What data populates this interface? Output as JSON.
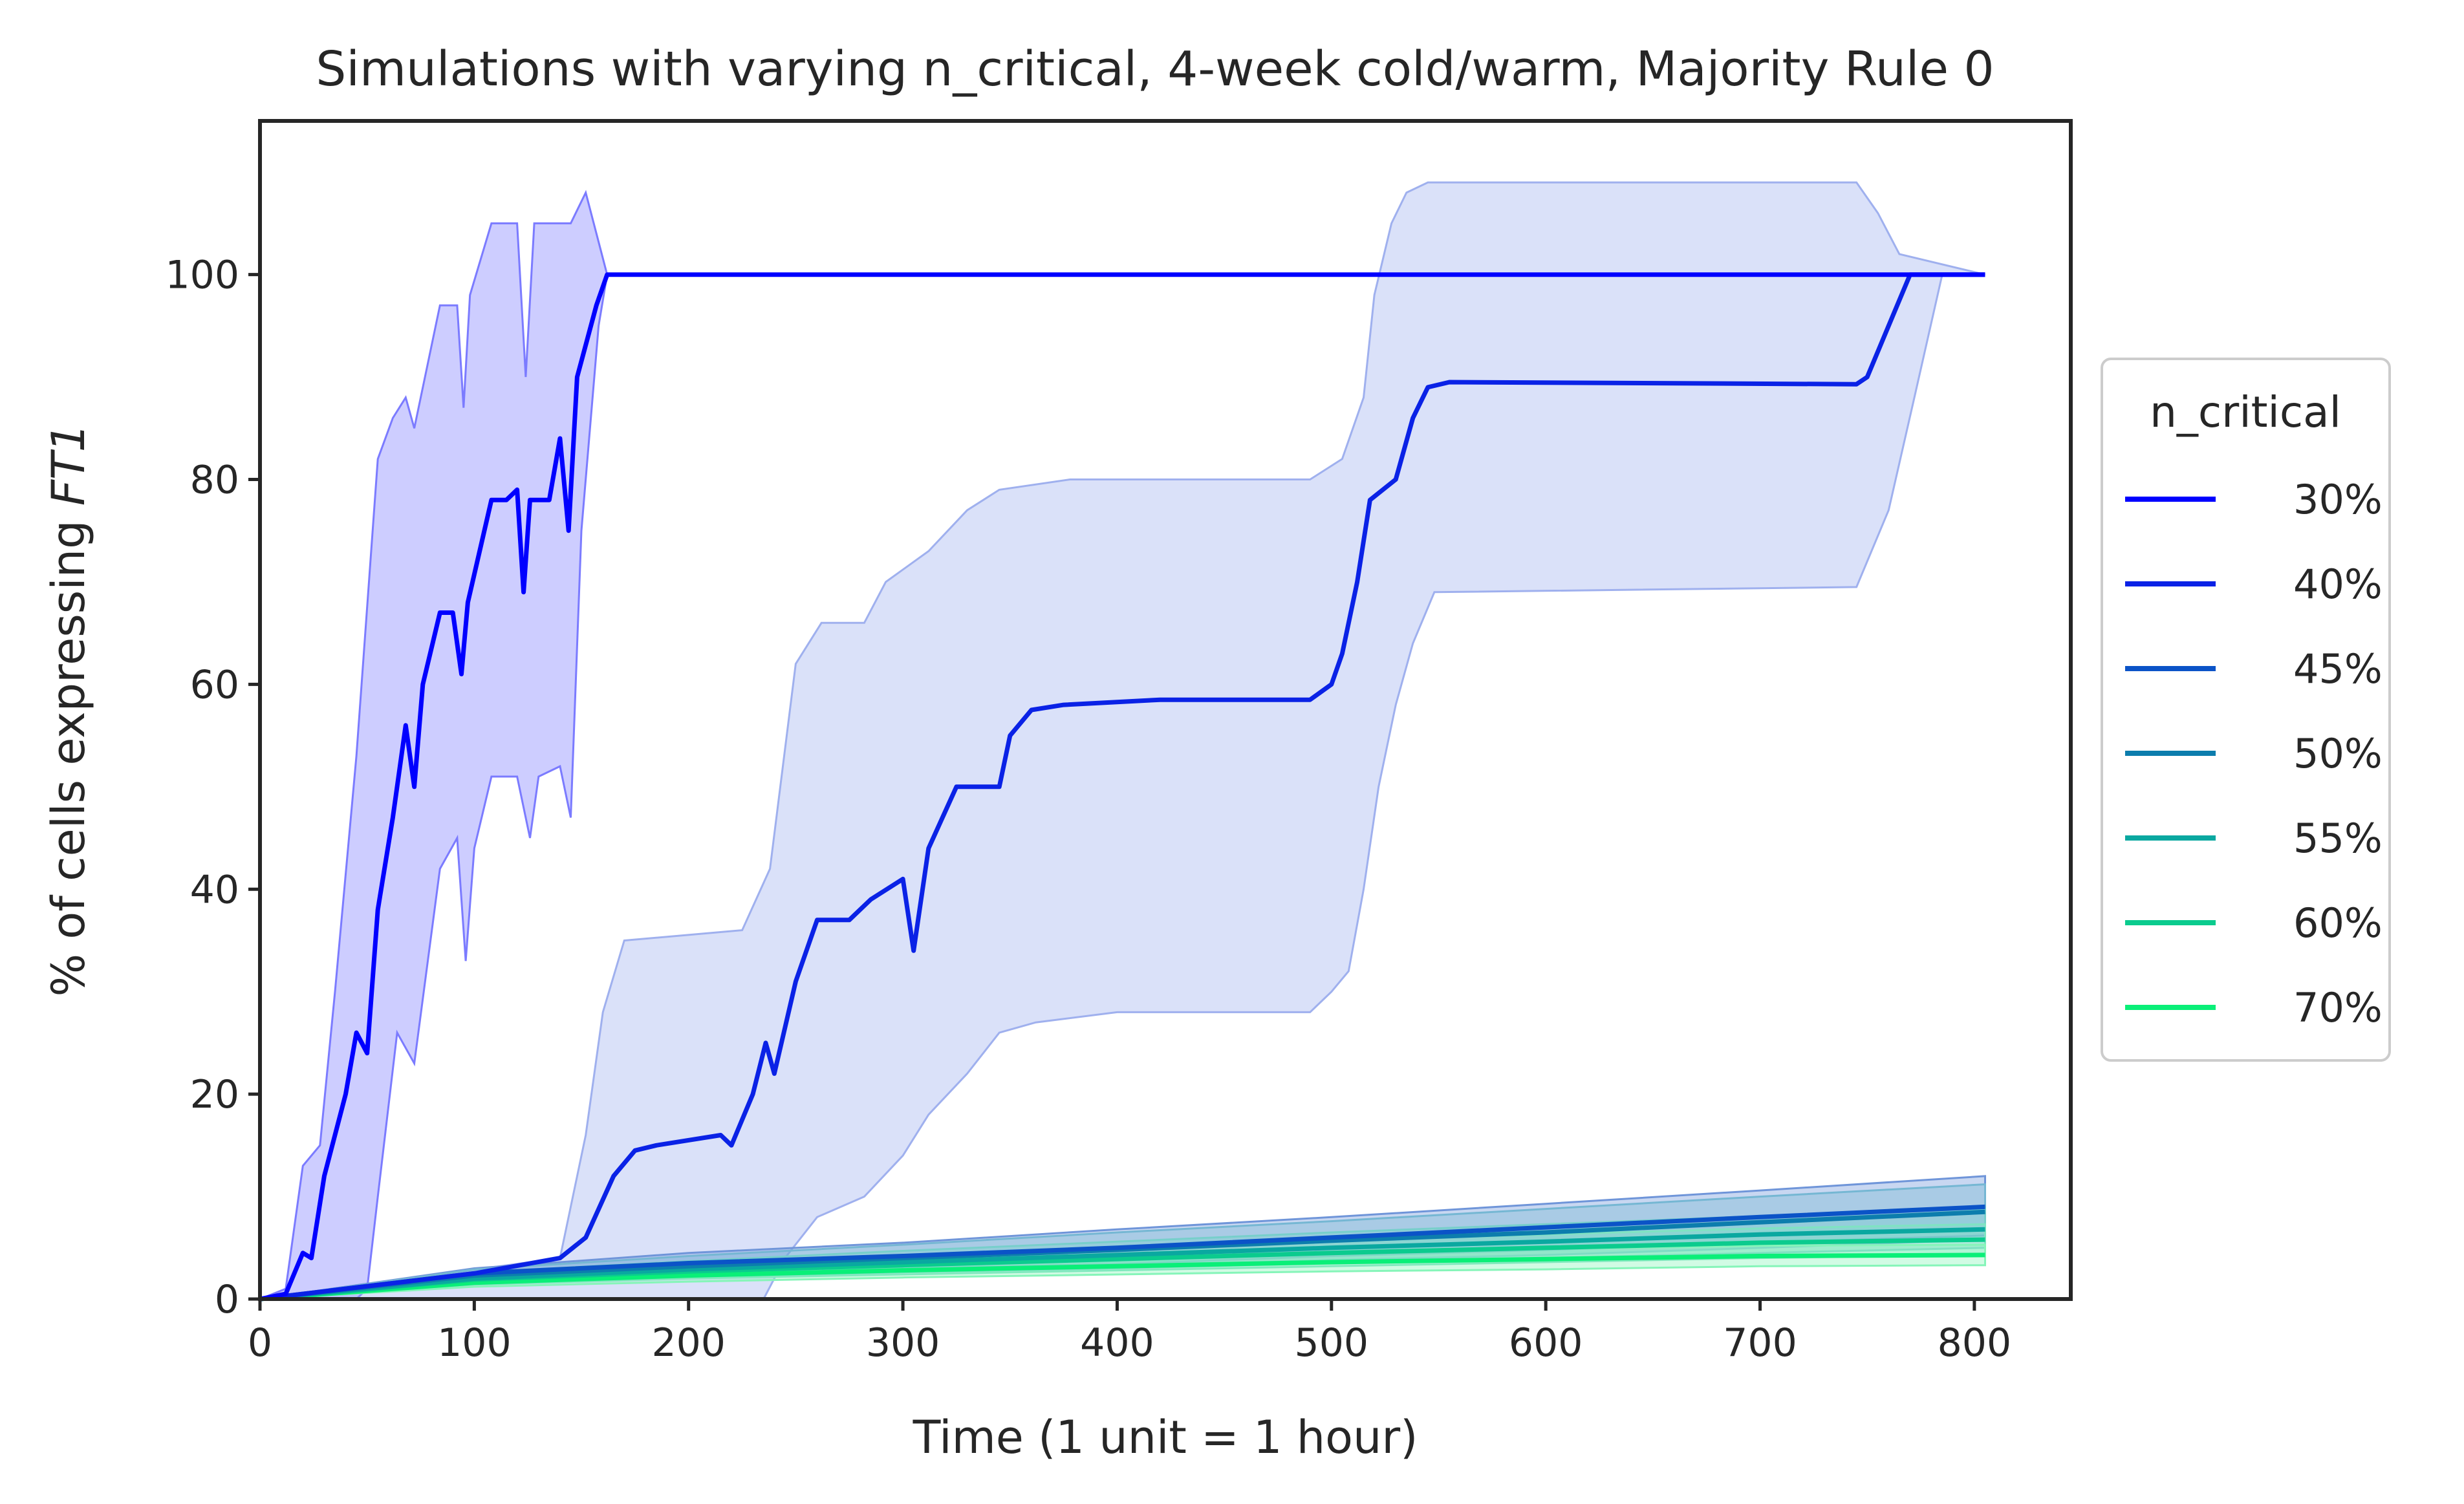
{
  "chart_data": {
    "type": "line",
    "title": "Simulations with varying n_critical, 4-week cold/warm, Majority Rule 0",
    "xlabel": "Time (1 unit = 1 hour)",
    "ylabel_prefix": "% of cells expressing ",
    "ylabel_italic": "FT1",
    "xlim": [
      0,
      845
    ],
    "ylim": [
      0,
      115
    ],
    "xticks": [
      0,
      100,
      200,
      300,
      400,
      500,
      600,
      700,
      800
    ],
    "yticks": [
      0,
      20,
      40,
      60,
      80,
      100
    ],
    "grid": false,
    "legend": {
      "title": "n_critical",
      "placement": "right"
    },
    "series": [
      {
        "name": "30%",
        "color": "#0000ff",
        "band_color": "#7b7bff",
        "mean": [
          [
            0,
            0
          ],
          [
            12,
            0.5
          ],
          [
            20,
            4.5
          ],
          [
            24,
            4
          ],
          [
            30,
            12
          ],
          [
            40,
            20
          ],
          [
            45,
            26
          ],
          [
            50,
            24
          ],
          [
            55,
            38
          ],
          [
            62,
            47
          ],
          [
            68,
            56
          ],
          [
            72,
            50
          ],
          [
            76,
            60
          ],
          [
            84,
            67
          ],
          [
            90,
            67
          ],
          [
            94,
            61
          ],
          [
            97,
            68
          ],
          [
            108,
            78
          ],
          [
            115,
            78
          ],
          [
            120,
            79
          ],
          [
            123,
            69
          ],
          [
            126,
            78
          ],
          [
            135,
            78
          ],
          [
            140,
            84
          ],
          [
            144,
            75
          ],
          [
            148,
            90
          ],
          [
            157,
            97
          ],
          [
            162,
            100
          ],
          [
            805,
            100
          ]
        ],
        "upper": [
          [
            0,
            0
          ],
          [
            12,
            1
          ],
          [
            20,
            13
          ],
          [
            28,
            15
          ],
          [
            35,
            30
          ],
          [
            45,
            53
          ],
          [
            55,
            82
          ],
          [
            62,
            86
          ],
          [
            68,
            88
          ],
          [
            72,
            85
          ],
          [
            84,
            97
          ],
          [
            92,
            97
          ],
          [
            95,
            87
          ],
          [
            98,
            98
          ],
          [
            108,
            105
          ],
          [
            120,
            105
          ],
          [
            124,
            90
          ],
          [
            128,
            105
          ],
          [
            145,
            105
          ],
          [
            152,
            108
          ],
          [
            162,
            100
          ],
          [
            805,
            100
          ]
        ],
        "lower": [
          [
            0,
            0
          ],
          [
            20,
            0
          ],
          [
            45,
            0
          ],
          [
            50,
            1
          ],
          [
            55,
            10
          ],
          [
            64,
            26
          ],
          [
            72,
            23
          ],
          [
            84,
            42
          ],
          [
            92,
            45
          ],
          [
            96,
            33
          ],
          [
            100,
            44
          ],
          [
            108,
            51
          ],
          [
            120,
            51
          ],
          [
            126,
            45
          ],
          [
            130,
            51
          ],
          [
            140,
            52
          ],
          [
            145,
            47
          ],
          [
            150,
            75
          ],
          [
            158,
            95
          ],
          [
            162,
            100
          ],
          [
            805,
            100
          ]
        ]
      },
      {
        "name": "40%",
        "color": "#0a22e6",
        "band_color": "#9fb0ee",
        "mean": [
          [
            0,
            0
          ],
          [
            100,
            2.5
          ],
          [
            140,
            4
          ],
          [
            152,
            6
          ],
          [
            165,
            12
          ],
          [
            175,
            14.5
          ],
          [
            185,
            15
          ],
          [
            215,
            16
          ],
          [
            220,
            15
          ],
          [
            230,
            20
          ],
          [
            236,
            25
          ],
          [
            240,
            22
          ],
          [
            250,
            31
          ],
          [
            260,
            37
          ],
          [
            275,
            37
          ],
          [
            285,
            39
          ],
          [
            300,
            41
          ],
          [
            305,
            34
          ],
          [
            312,
            44
          ],
          [
            325,
            50
          ],
          [
            345,
            50
          ],
          [
            350,
            55
          ],
          [
            360,
            57.5
          ],
          [
            375,
            58
          ],
          [
            420,
            58.5
          ],
          [
            490,
            58.5
          ],
          [
            500,
            60
          ],
          [
            505,
            63
          ],
          [
            512,
            70
          ],
          [
            518,
            78
          ],
          [
            530,
            80
          ],
          [
            538,
            86
          ],
          [
            545,
            89
          ],
          [
            555,
            89.5
          ],
          [
            745,
            89.3
          ],
          [
            750,
            90
          ],
          [
            760,
            95
          ],
          [
            770,
            100
          ],
          [
            805,
            100
          ]
        ],
        "upper": [
          [
            0,
            0
          ],
          [
            140,
            4
          ],
          [
            152,
            16
          ],
          [
            160,
            28
          ],
          [
            170,
            35
          ],
          [
            225,
            36
          ],
          [
            238,
            42
          ],
          [
            250,
            62
          ],
          [
            262,
            66
          ],
          [
            282,
            66
          ],
          [
            292,
            70
          ],
          [
            312,
            73
          ],
          [
            330,
            77
          ],
          [
            345,
            79
          ],
          [
            378,
            80
          ],
          [
            490,
            80
          ],
          [
            505,
            82
          ],
          [
            515,
            88
          ],
          [
            520,
            98
          ],
          [
            528,
            105
          ],
          [
            535,
            108
          ],
          [
            545,
            109
          ],
          [
            745,
            109
          ],
          [
            755,
            106
          ],
          [
            765,
            102
          ],
          [
            805,
            100
          ]
        ],
        "lower": [
          [
            0,
            0
          ],
          [
            140,
            0
          ],
          [
            235,
            0
          ],
          [
            245,
            4
          ],
          [
            260,
            8
          ],
          [
            282,
            10
          ],
          [
            300,
            14
          ],
          [
            312,
            18
          ],
          [
            330,
            22
          ],
          [
            345,
            26
          ],
          [
            362,
            27
          ],
          [
            400,
            28
          ],
          [
            490,
            28
          ],
          [
            500,
            30
          ],
          [
            508,
            32
          ],
          [
            515,
            40
          ],
          [
            522,
            50
          ],
          [
            530,
            58
          ],
          [
            538,
            64
          ],
          [
            548,
            69
          ],
          [
            745,
            69.5
          ],
          [
            760,
            77
          ],
          [
            772,
            88
          ],
          [
            785,
            100
          ],
          [
            805,
            100
          ]
        ]
      },
      {
        "name": "45%",
        "color": "#0b53c7",
        "band_color": "#6f95d9",
        "mean": [
          [
            0,
            0
          ],
          [
            100,
            2.5
          ],
          [
            200,
            3.5
          ],
          [
            300,
            4.2
          ],
          [
            400,
            5
          ],
          [
            500,
            6
          ],
          [
            600,
            7
          ],
          [
            700,
            8
          ],
          [
            805,
            9
          ]
        ],
        "upper": [
          [
            0,
            0
          ],
          [
            100,
            3
          ],
          [
            200,
            4.5
          ],
          [
            300,
            5.5
          ],
          [
            400,
            6.8
          ],
          [
            500,
            8
          ],
          [
            600,
            9.3
          ],
          [
            700,
            10.6
          ],
          [
            805,
            12
          ]
        ],
        "lower": [
          [
            0,
            0
          ],
          [
            100,
            1.9
          ],
          [
            200,
            2.6
          ],
          [
            300,
            3
          ],
          [
            400,
            3.4
          ],
          [
            500,
            4.2
          ],
          [
            600,
            4.8
          ],
          [
            700,
            5.5
          ],
          [
            805,
            6.2
          ]
        ]
      },
      {
        "name": "50%",
        "color": "#0c7dad",
        "band_color": "#75b7d3",
        "mean": [
          [
            0,
            0
          ],
          [
            100,
            2.3
          ],
          [
            200,
            3.2
          ],
          [
            300,
            4
          ],
          [
            400,
            4.8
          ],
          [
            500,
            5.7
          ],
          [
            600,
            6.5
          ],
          [
            700,
            7.5
          ],
          [
            805,
            8.5
          ]
        ],
        "upper": [
          [
            0,
            0
          ],
          [
            100,
            2.9
          ],
          [
            200,
            4.2
          ],
          [
            300,
            5.3
          ],
          [
            400,
            6.5
          ],
          [
            500,
            7.6
          ],
          [
            600,
            8.8
          ],
          [
            700,
            10
          ],
          [
            805,
            11.2
          ]
        ],
        "lower": [
          [
            0,
            0
          ],
          [
            100,
            1.7
          ],
          [
            200,
            2.3
          ],
          [
            300,
            2.8
          ],
          [
            400,
            3.2
          ],
          [
            500,
            3.8
          ],
          [
            600,
            4.3
          ],
          [
            700,
            5
          ],
          [
            805,
            5.8
          ]
        ]
      },
      {
        "name": "55%",
        "color": "#0aa8a0",
        "band_color": "#77cfcb",
        "mean": [
          [
            0,
            0
          ],
          [
            100,
            2
          ],
          [
            200,
            2.9
          ],
          [
            300,
            3.6
          ],
          [
            400,
            4.3
          ],
          [
            500,
            5
          ],
          [
            600,
            5.6
          ],
          [
            700,
            6.3
          ],
          [
            805,
            6.8
          ]
        ],
        "upper": [
          [
            0,
            0
          ],
          [
            100,
            2.6
          ],
          [
            200,
            3.7
          ],
          [
            300,
            4.7
          ],
          [
            400,
            5.6
          ],
          [
            500,
            6.5
          ],
          [
            600,
            7.3
          ],
          [
            700,
            8.1
          ],
          [
            805,
            8.8
          ]
        ],
        "lower": [
          [
            0,
            0
          ],
          [
            100,
            1.5
          ],
          [
            200,
            2.1
          ],
          [
            300,
            2.6
          ],
          [
            400,
            3
          ],
          [
            500,
            3.5
          ],
          [
            600,
            4
          ],
          [
            700,
            4.5
          ],
          [
            805,
            5
          ]
        ]
      },
      {
        "name": "60%",
        "color": "#0bcb8e",
        "band_color": "#7fe3c2",
        "mean": [
          [
            0,
            0
          ],
          [
            100,
            1.9
          ],
          [
            200,
            2.7
          ],
          [
            300,
            3.3
          ],
          [
            400,
            3.9
          ],
          [
            500,
            4.5
          ],
          [
            600,
            5
          ],
          [
            700,
            5.5
          ],
          [
            805,
            5.8
          ]
        ],
        "upper": [
          [
            0,
            0
          ],
          [
            100,
            2.4
          ],
          [
            200,
            3.4
          ],
          [
            300,
            4.2
          ],
          [
            400,
            5
          ],
          [
            500,
            5.7
          ],
          [
            600,
            6.3
          ],
          [
            700,
            6.9
          ],
          [
            805,
            7.3
          ]
        ],
        "lower": [
          [
            0,
            0
          ],
          [
            100,
            1.4
          ],
          [
            200,
            2
          ],
          [
            300,
            2.4
          ],
          [
            400,
            2.8
          ],
          [
            500,
            3.2
          ],
          [
            600,
            3.6
          ],
          [
            700,
            4
          ],
          [
            805,
            4.3
          ]
        ]
      },
      {
        "name": "70%",
        "color": "#0aef78",
        "band_color": "#86f5b9",
        "mean": [
          [
            0,
            0
          ],
          [
            100,
            1.6
          ],
          [
            200,
            2.3
          ],
          [
            300,
            2.8
          ],
          [
            400,
            3.2
          ],
          [
            500,
            3.6
          ],
          [
            600,
            3.9
          ],
          [
            700,
            4.2
          ],
          [
            805,
            4.3
          ]
        ],
        "upper": [
          [
            0,
            0
          ],
          [
            100,
            2
          ],
          [
            200,
            2.9
          ],
          [
            300,
            3.5
          ],
          [
            400,
            4
          ],
          [
            500,
            4.5
          ],
          [
            600,
            4.9
          ],
          [
            700,
            5.2
          ],
          [
            805,
            5.3
          ]
        ],
        "lower": [
          [
            0,
            0
          ],
          [
            100,
            1.2
          ],
          [
            200,
            1.7
          ],
          [
            300,
            2.1
          ],
          [
            400,
            2.4
          ],
          [
            500,
            2.7
          ],
          [
            600,
            2.9
          ],
          [
            700,
            3.2
          ],
          [
            805,
            3.3
          ]
        ]
      }
    ]
  }
}
